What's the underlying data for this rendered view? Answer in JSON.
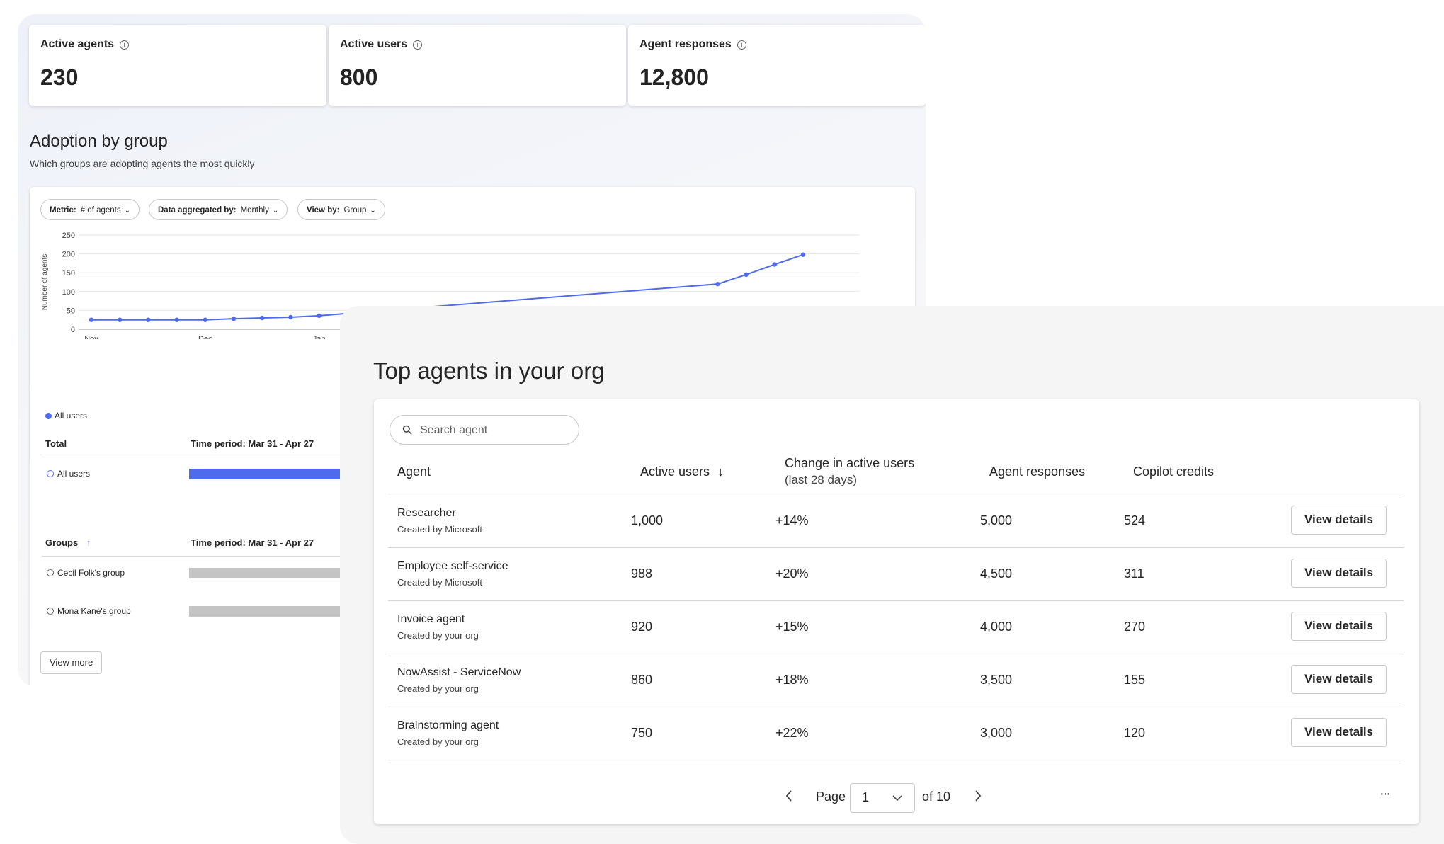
{
  "kpis": [
    {
      "label": "Active agents",
      "value": "230"
    },
    {
      "label": "Active users",
      "value": "800"
    },
    {
      "label": "Agent responses",
      "value": "12,800"
    }
  ],
  "adoption": {
    "title": "Adoption by group",
    "subtitle": "Which groups are adopting agents the most quickly",
    "filters": [
      {
        "label": "Metric:",
        "value": "# of agents"
      },
      {
        "label": "Data aggregated by:",
        "value": "Monthly"
      },
      {
        "label": "View by:",
        "value": "Group"
      }
    ],
    "legend": "All users",
    "total_header": "Total",
    "time_period": "Time period: Mar 31 - Apr 27",
    "total_row": "All users",
    "groups_header": "Groups",
    "groups": [
      "Cecil Folk's group",
      "Mona Kane's group"
    ],
    "view_more": "View more",
    "accent_color": "#4f6bed",
    "bar_gray": "#c4c4c4"
  },
  "chart_data": {
    "type": "line",
    "ylabel": "Number of agents",
    "ylim": [
      0,
      250
    ],
    "yticks": [
      "250",
      "200",
      "150",
      "100",
      "50",
      "0"
    ],
    "xticks": [
      "Nov",
      "Dec",
      "Jan"
    ],
    "grid": true,
    "series": [
      {
        "name": "All users",
        "color": "#4f6bed",
        "points": [
          [
            0,
            25
          ],
          [
            1,
            25
          ],
          [
            2,
            25
          ],
          [
            3,
            25
          ],
          [
            4,
            25
          ],
          [
            5,
            28
          ],
          [
            6,
            30
          ],
          [
            7,
            32
          ],
          [
            8,
            36
          ],
          [
            22,
            120
          ],
          [
            23,
            145
          ],
          [
            24,
            172
          ],
          [
            25,
            198
          ]
        ]
      }
    ]
  },
  "top_agents": {
    "title": "Top agents in your org",
    "search_placeholder": "Search agent",
    "columns": {
      "agent": "Agent",
      "active_users": "Active users",
      "sort_arrow": "↓",
      "change": "Change in active users",
      "change_sub": "(last 28 days)",
      "responses": "Agent responses",
      "credits": "Copilot credits"
    },
    "rows": [
      {
        "name": "Researcher",
        "creator": "Created by Microsoft",
        "users": "1,000",
        "change": "+14%",
        "responses": "5,000",
        "credits": "524",
        "action": "View details"
      },
      {
        "name": "Employee self-service",
        "creator": "Created by Microsoft",
        "users": "988",
        "change": "+20%",
        "responses": "4,500",
        "credits": "311",
        "action": "View details"
      },
      {
        "name": "Invoice agent",
        "creator": "Created by your org",
        "users": "920",
        "change": "+15%",
        "responses": "4,000",
        "credits": "270",
        "action": "View details"
      },
      {
        "name": "NowAssist - ServiceNow",
        "creator": "Created by your org",
        "users": "860",
        "change": "+18%",
        "responses": "3,500",
        "credits": "155",
        "action": "View details"
      },
      {
        "name": "Brainstorming agent",
        "creator": "Created by your org",
        "users": "750",
        "change": "+22%",
        "responses": "3,000",
        "credits": "120",
        "action": "View details"
      }
    ],
    "pagination": {
      "page_label": "Page",
      "current": "1",
      "of_label": "of 10",
      "more": "···"
    }
  }
}
